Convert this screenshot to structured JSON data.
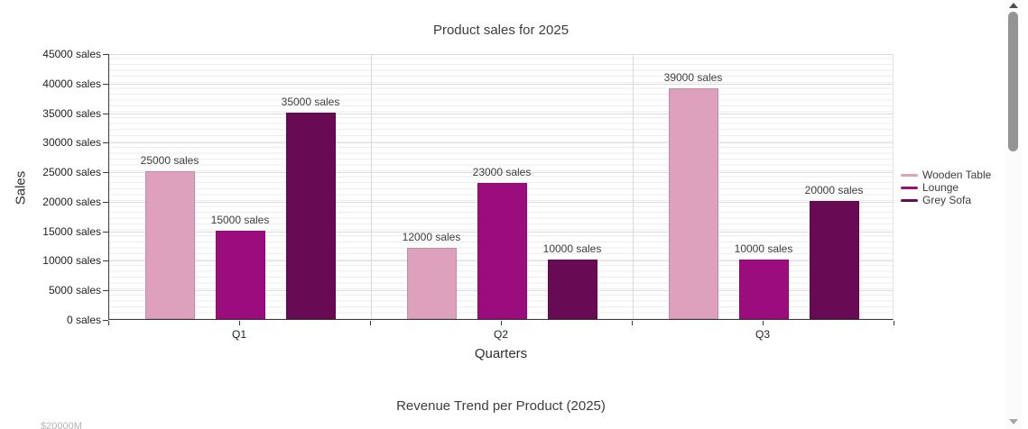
{
  "chart_data": [
    {
      "type": "bar",
      "title": "Product sales for 2025",
      "xlabel": "Quarters",
      "ylabel": "Sales",
      "categories": [
        "Q1",
        "Q2",
        "Q3"
      ],
      "series": [
        {
          "name": "Wooden Table",
          "color": "#dda0bd",
          "values": [
            25000,
            12000,
            39000
          ]
        },
        {
          "name": "Lounge",
          "color": "#9b0d7d",
          "values": [
            15000,
            23000,
            10000
          ]
        },
        {
          "name": "Grey Sofa",
          "color": "#690b54",
          "values": [
            35000,
            10000,
            20000
          ]
        }
      ],
      "ylim": [
        0,
        45000
      ],
      "ytick_step": 5000,
      "ytick_suffix": " sales",
      "data_label_suffix": " sales",
      "grid": true,
      "legend_position": "right"
    },
    {
      "type": "line",
      "title": "Revenue Trend per Product (2025)",
      "partial_ytick_label": "$20000M"
    }
  ],
  "scrollbar": {
    "up_arrow_icon": "triangle-up",
    "down_arrow_icon": "triangle-down"
  }
}
